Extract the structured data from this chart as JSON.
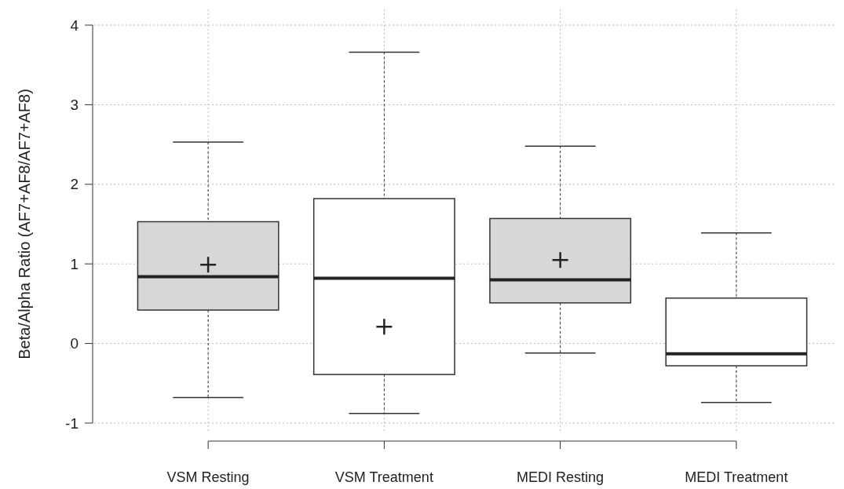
{
  "chart_data": {
    "type": "box",
    "ylabel": "Beta/Alpha Ratio (AF7+AF8/AF7+AF8)",
    "categories": [
      "VSM Resting",
      "VSM Treatment",
      "MEDI Resting",
      "MEDI Treatment"
    ],
    "boxes": [
      {
        "low": -0.68,
        "q1": 0.42,
        "median": 0.84,
        "q3": 1.53,
        "high": 2.53,
        "mean": 0.99
      },
      {
        "low": -0.88,
        "q1": -0.39,
        "median": 0.82,
        "q3": 1.82,
        "high": 3.66,
        "mean": 0.21
      },
      {
        "low": -0.12,
        "q1": 0.51,
        "median": 0.8,
        "q3": 1.57,
        "high": 2.48,
        "mean": 1.05
      },
      {
        "low": -0.74,
        "q1": -0.28,
        "median": -0.13,
        "q3": 0.57,
        "high": 1.39
      }
    ],
    "colors": [
      "#d6d7d9",
      "#ffffff",
      "#d6d7d9",
      "#ffffff"
    ],
    "ylim": [
      -1,
      4
    ],
    "yticks": [
      -1,
      0,
      1,
      2,
      3,
      4
    ],
    "grid": true,
    "marker": "cross"
  }
}
